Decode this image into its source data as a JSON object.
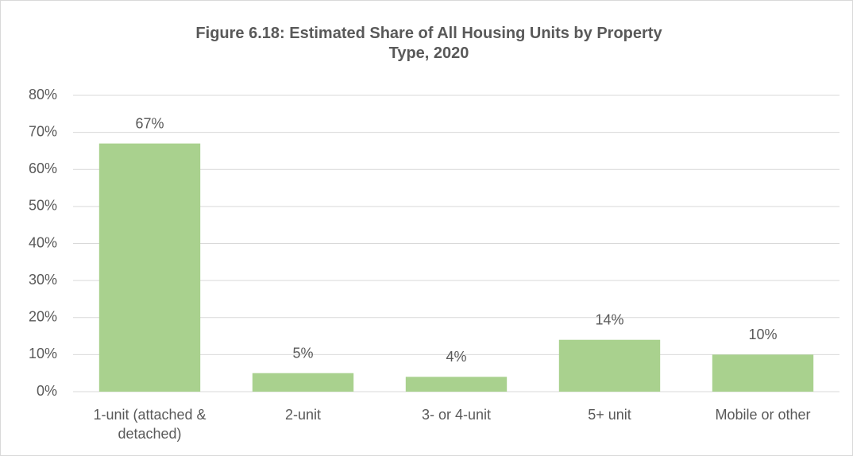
{
  "chart_data": {
    "type": "bar",
    "title": "Figure 6.18: Estimated Share of All Housing Units by Property Type, 2020",
    "categories": [
      "1-unit (attached & detached)",
      "2-unit",
      "3- or 4-unit",
      "5+ unit",
      "Mobile or other"
    ],
    "values": [
      67,
      5,
      4,
      14,
      10
    ],
    "value_labels": [
      "67%",
      "5%",
      "4%",
      "14%",
      "10%"
    ],
    "color": "#a9d18e",
    "ylim": [
      0,
      80
    ],
    "yticks": [
      {
        "value": 0,
        "label": "0%"
      },
      {
        "value": 10,
        "label": "10%"
      },
      {
        "value": 20,
        "label": "20%"
      },
      {
        "value": 30,
        "label": "30%"
      },
      {
        "value": 40,
        "label": "40%"
      },
      {
        "value": 50,
        "label": "50%"
      },
      {
        "value": 60,
        "label": "60%"
      },
      {
        "value": 70,
        "label": "70%"
      },
      {
        "value": 80,
        "label": "80%"
      }
    ],
    "grid": true
  }
}
